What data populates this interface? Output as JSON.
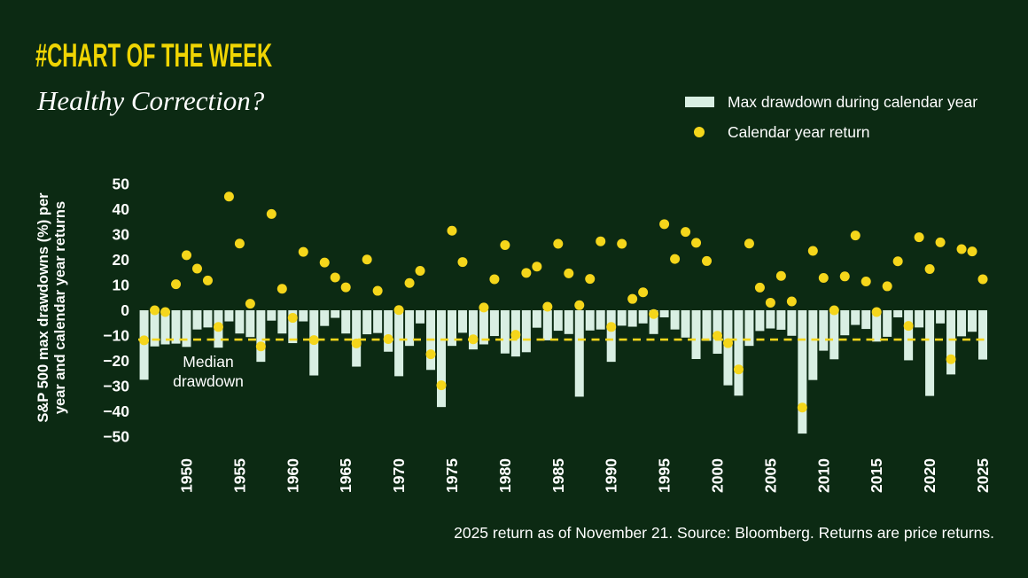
{
  "page": {
    "background_color": "#0c2a13",
    "text_color": "#ffffff"
  },
  "header": {
    "kicker": "#CHART OF THE WEEK",
    "kicker_color": "#f0d503",
    "title": "Healthy Correction?"
  },
  "legend": {
    "items": [
      {
        "swatch": "bar",
        "color": "#d9efe3",
        "label": "Max drawdown during calendar year"
      },
      {
        "swatch": "dot",
        "color": "#f5d61b",
        "label": "Calendar year return"
      }
    ]
  },
  "footer": {
    "note": "2025 return as of November 21. Source: Bloomberg. Returns are price returns."
  },
  "chart_data": {
    "type": "bar+scatter",
    "title": "Healthy Correction?",
    "ylabel_lines": [
      "S&P 500 max drawdowns (%) per",
      "year and calendar year returns"
    ],
    "ylim": [
      -50,
      50
    ],
    "yticks": [
      50,
      40,
      30,
      20,
      10,
      0,
      -10,
      -20,
      -30,
      -40,
      -50
    ],
    "xticks": [
      1950,
      1955,
      1960,
      1965,
      1970,
      1975,
      1980,
      1985,
      1990,
      1995,
      2000,
      2005,
      2010,
      2015,
      2020,
      2025
    ],
    "grid": false,
    "legend_position": "top-right",
    "years": [
      1946,
      1947,
      1948,
      1949,
      1950,
      1951,
      1952,
      1953,
      1954,
      1955,
      1956,
      1957,
      1958,
      1959,
      1960,
      1961,
      1962,
      1963,
      1964,
      1965,
      1966,
      1967,
      1968,
      1969,
      1970,
      1971,
      1972,
      1973,
      1974,
      1975,
      1976,
      1977,
      1978,
      1979,
      1980,
      1981,
      1982,
      1983,
      1984,
      1985,
      1986,
      1987,
      1988,
      1989,
      1990,
      1991,
      1992,
      1993,
      1994,
      1995,
      1996,
      1997,
      1998,
      1999,
      2000,
      2001,
      2002,
      2003,
      2004,
      2005,
      2006,
      2007,
      2008,
      2009,
      2010,
      2011,
      2012,
      2013,
      2014,
      2015,
      2016,
      2017,
      2018,
      2019,
      2020,
      2021,
      2022,
      2023,
      2024,
      2025
    ],
    "series": [
      {
        "name": "Max drawdown during calendar year",
        "type": "bar",
        "color": "#d9efe3",
        "values": [
          -27.5,
          -14.3,
          -13.5,
          -13.2,
          -14.5,
          -7.6,
          -6.8,
          -14.8,
          -4.4,
          -9.2,
          -10.6,
          -20.4,
          -4.1,
          -9.2,
          -13.0,
          -4.4,
          -25.8,
          -6.2,
          -3.0,
          -9.2,
          -22.3,
          -9.5,
          -9.0,
          -16.4,
          -26.1,
          -14.1,
          -5.2,
          -23.6,
          -38.3,
          -14.1,
          -8.9,
          -15.5,
          -13.5,
          -10.2,
          -17.1,
          -18.3,
          -16.6,
          -6.9,
          -11.9,
          -8.1,
          -9.4,
          -34.2,
          -8.0,
          -7.6,
          -20.4,
          -6.1,
          -6.5,
          -5.2,
          -9.4,
          -2.8,
          -7.6,
          -10.8,
          -19.3,
          -12.1,
          -17.2,
          -29.7,
          -33.8,
          -14.1,
          -8.2,
          -7.2,
          -7.7,
          -10.1,
          -48.8,
          -27.6,
          -16.0,
          -19.4,
          -9.9,
          -5.8,
          -7.4,
          -12.4,
          -10.5,
          -2.8,
          -19.8,
          -6.8,
          -33.9,
          -5.2,
          -25.4,
          -10.3,
          -8.5,
          -19.5
        ]
      },
      {
        "name": "Calendar year return",
        "type": "scatter",
        "color": "#f5d61b",
        "values": [
          -11.9,
          0.0,
          -0.7,
          10.3,
          21.8,
          16.5,
          11.8,
          -6.6,
          45.0,
          26.4,
          2.6,
          -14.3,
          38.1,
          8.5,
          -3.0,
          23.1,
          -11.8,
          18.9,
          13.0,
          9.1,
          -13.1,
          20.1,
          7.7,
          -11.4,
          0.1,
          10.8,
          15.6,
          -17.4,
          -29.7,
          31.5,
          19.1,
          -11.5,
          1.1,
          12.3,
          25.8,
          -9.7,
          14.8,
          17.3,
          1.4,
          26.3,
          14.6,
          2.0,
          12.4,
          27.3,
          -6.6,
          26.3,
          4.5,
          7.1,
          -1.5,
          34.1,
          20.3,
          31.0,
          26.7,
          19.5,
          -10.1,
          -13.0,
          -23.4,
          26.4,
          9.0,
          3.0,
          13.6,
          3.5,
          -38.5,
          23.5,
          12.8,
          0.0,
          13.4,
          29.6,
          11.4,
          -0.7,
          9.5,
          19.4,
          -6.2,
          28.9,
          16.3,
          26.9,
          -19.4,
          24.2,
          23.3,
          12.3
        ]
      }
    ],
    "median_line": {
      "value": -11.6,
      "style": "dashed",
      "color": "#f5d61b",
      "label_lines": [
        "Median",
        "drawdown"
      ]
    }
  }
}
